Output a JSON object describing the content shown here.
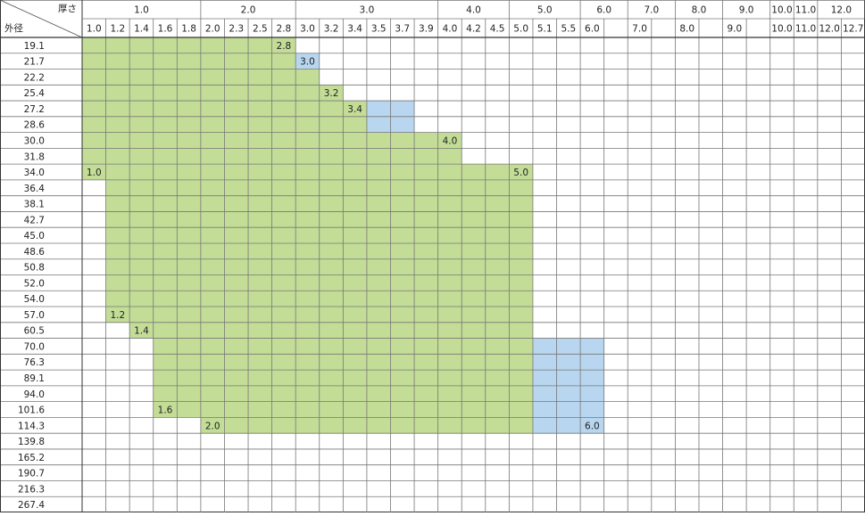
{
  "corner": {
    "thickness": "厚さ",
    "diameter": "外径"
  },
  "groups": [
    {
      "label": "1.0",
      "span": 5
    },
    {
      "label": "2.0",
      "span": 4
    },
    {
      "label": "3.0",
      "span": 6
    },
    {
      "label": "4.0",
      "span": 3
    },
    {
      "label": "5.0",
      "span": 3
    },
    {
      "label": "6.0",
      "span": 2
    },
    {
      "label": "7.0",
      "span": 2
    },
    {
      "label": "8.0",
      "span": 2
    },
    {
      "label": "9.0",
      "span": 2
    },
    {
      "label": "10.0",
      "span": 1
    },
    {
      "label": "11.0",
      "span": 1
    },
    {
      "label": "12.0",
      "span": 2
    }
  ],
  "subheaders": [
    "1.0",
    "1.2",
    "1.4",
    "1.6",
    "1.8",
    "2.0",
    "2.3",
    "2.5",
    "2.8",
    "3.0",
    "3.2",
    "3.4",
    "3.5",
    "3.7",
    "3.9",
    "4.0",
    "4.2",
    "4.5",
    "5.0",
    "5.1",
    "5.5",
    "6.0",
    null,
    "7.0",
    null,
    "8.0",
    null,
    "9.0",
    null,
    "10.0",
    "11.0",
    "12.0",
    "12.7"
  ],
  "rows": [
    {
      "label": "19.1",
      "green": [
        0,
        8
      ],
      "notes": [
        {
          "col": 8,
          "label": "2.8"
        }
      ]
    },
    {
      "label": "21.7",
      "green": [
        0,
        8
      ],
      "blue": [
        9,
        9
      ],
      "notes": [
        {
          "col": 9,
          "label": "3.0"
        }
      ]
    },
    {
      "label": "22.2",
      "green": [
        0,
        9
      ]
    },
    {
      "label": "25.4",
      "green": [
        0,
        10
      ],
      "notes": [
        {
          "col": 10,
          "label": "3.2"
        }
      ]
    },
    {
      "label": "27.2",
      "green": [
        0,
        11
      ],
      "blue": [
        12,
        13
      ],
      "notes": [
        {
          "col": 11,
          "label": "3.4"
        }
      ]
    },
    {
      "label": "28.6",
      "green": [
        0,
        11
      ],
      "blue": [
        12,
        13
      ]
    },
    {
      "label": "30.0",
      "green": [
        0,
        15
      ],
      "notes": [
        {
          "col": 15,
          "label": "4.0"
        }
      ]
    },
    {
      "label": "31.8",
      "green": [
        0,
        15
      ]
    },
    {
      "label": "34.0",
      "green": [
        0,
        18
      ],
      "notes": [
        {
          "col": 0,
          "label": "1.0"
        },
        {
          "col": 18,
          "label": "5.0"
        }
      ]
    },
    {
      "label": "36.4",
      "green": [
        1,
        18
      ]
    },
    {
      "label": "38.1",
      "green": [
        1,
        18
      ]
    },
    {
      "label": "42.7",
      "green": [
        1,
        18
      ]
    },
    {
      "label": "45.0",
      "green": [
        1,
        18
      ]
    },
    {
      "label": "48.6",
      "green": [
        1,
        18
      ]
    },
    {
      "label": "50.8",
      "green": [
        1,
        18
      ]
    },
    {
      "label": "52.0",
      "green": [
        1,
        18
      ]
    },
    {
      "label": "54.0",
      "green": [
        1,
        18
      ]
    },
    {
      "label": "57.0",
      "green": [
        1,
        18
      ],
      "notes": [
        {
          "col": 1,
          "label": "1.2"
        }
      ]
    },
    {
      "label": "60.5",
      "green": [
        2,
        18
      ],
      "notes": [
        {
          "col": 2,
          "label": "1.4"
        }
      ]
    },
    {
      "label": "70.0",
      "green": [
        3,
        18
      ],
      "blue": [
        19,
        21
      ]
    },
    {
      "label": "76.3",
      "green": [
        3,
        18
      ],
      "blue": [
        19,
        21
      ]
    },
    {
      "label": "89.1",
      "green": [
        3,
        18
      ],
      "blue": [
        19,
        21
      ]
    },
    {
      "label": "94.0",
      "green": [
        3,
        18
      ],
      "blue": [
        19,
        21
      ]
    },
    {
      "label": "101.6",
      "green": [
        3,
        18
      ],
      "blue": [
        19,
        21
      ],
      "notes": [
        {
          "col": 3,
          "label": "1.6"
        }
      ]
    },
    {
      "label": "114.3",
      "green": [
        5,
        18
      ],
      "blue": [
        19,
        21
      ],
      "notes": [
        {
          "col": 5,
          "label": "2.0"
        },
        {
          "col": 21,
          "label": "6.0"
        }
      ]
    },
    {
      "label": "139.8"
    },
    {
      "label": "165.2"
    },
    {
      "label": "190.7"
    },
    {
      "label": "216.3"
    },
    {
      "label": "267.4"
    }
  ]
}
